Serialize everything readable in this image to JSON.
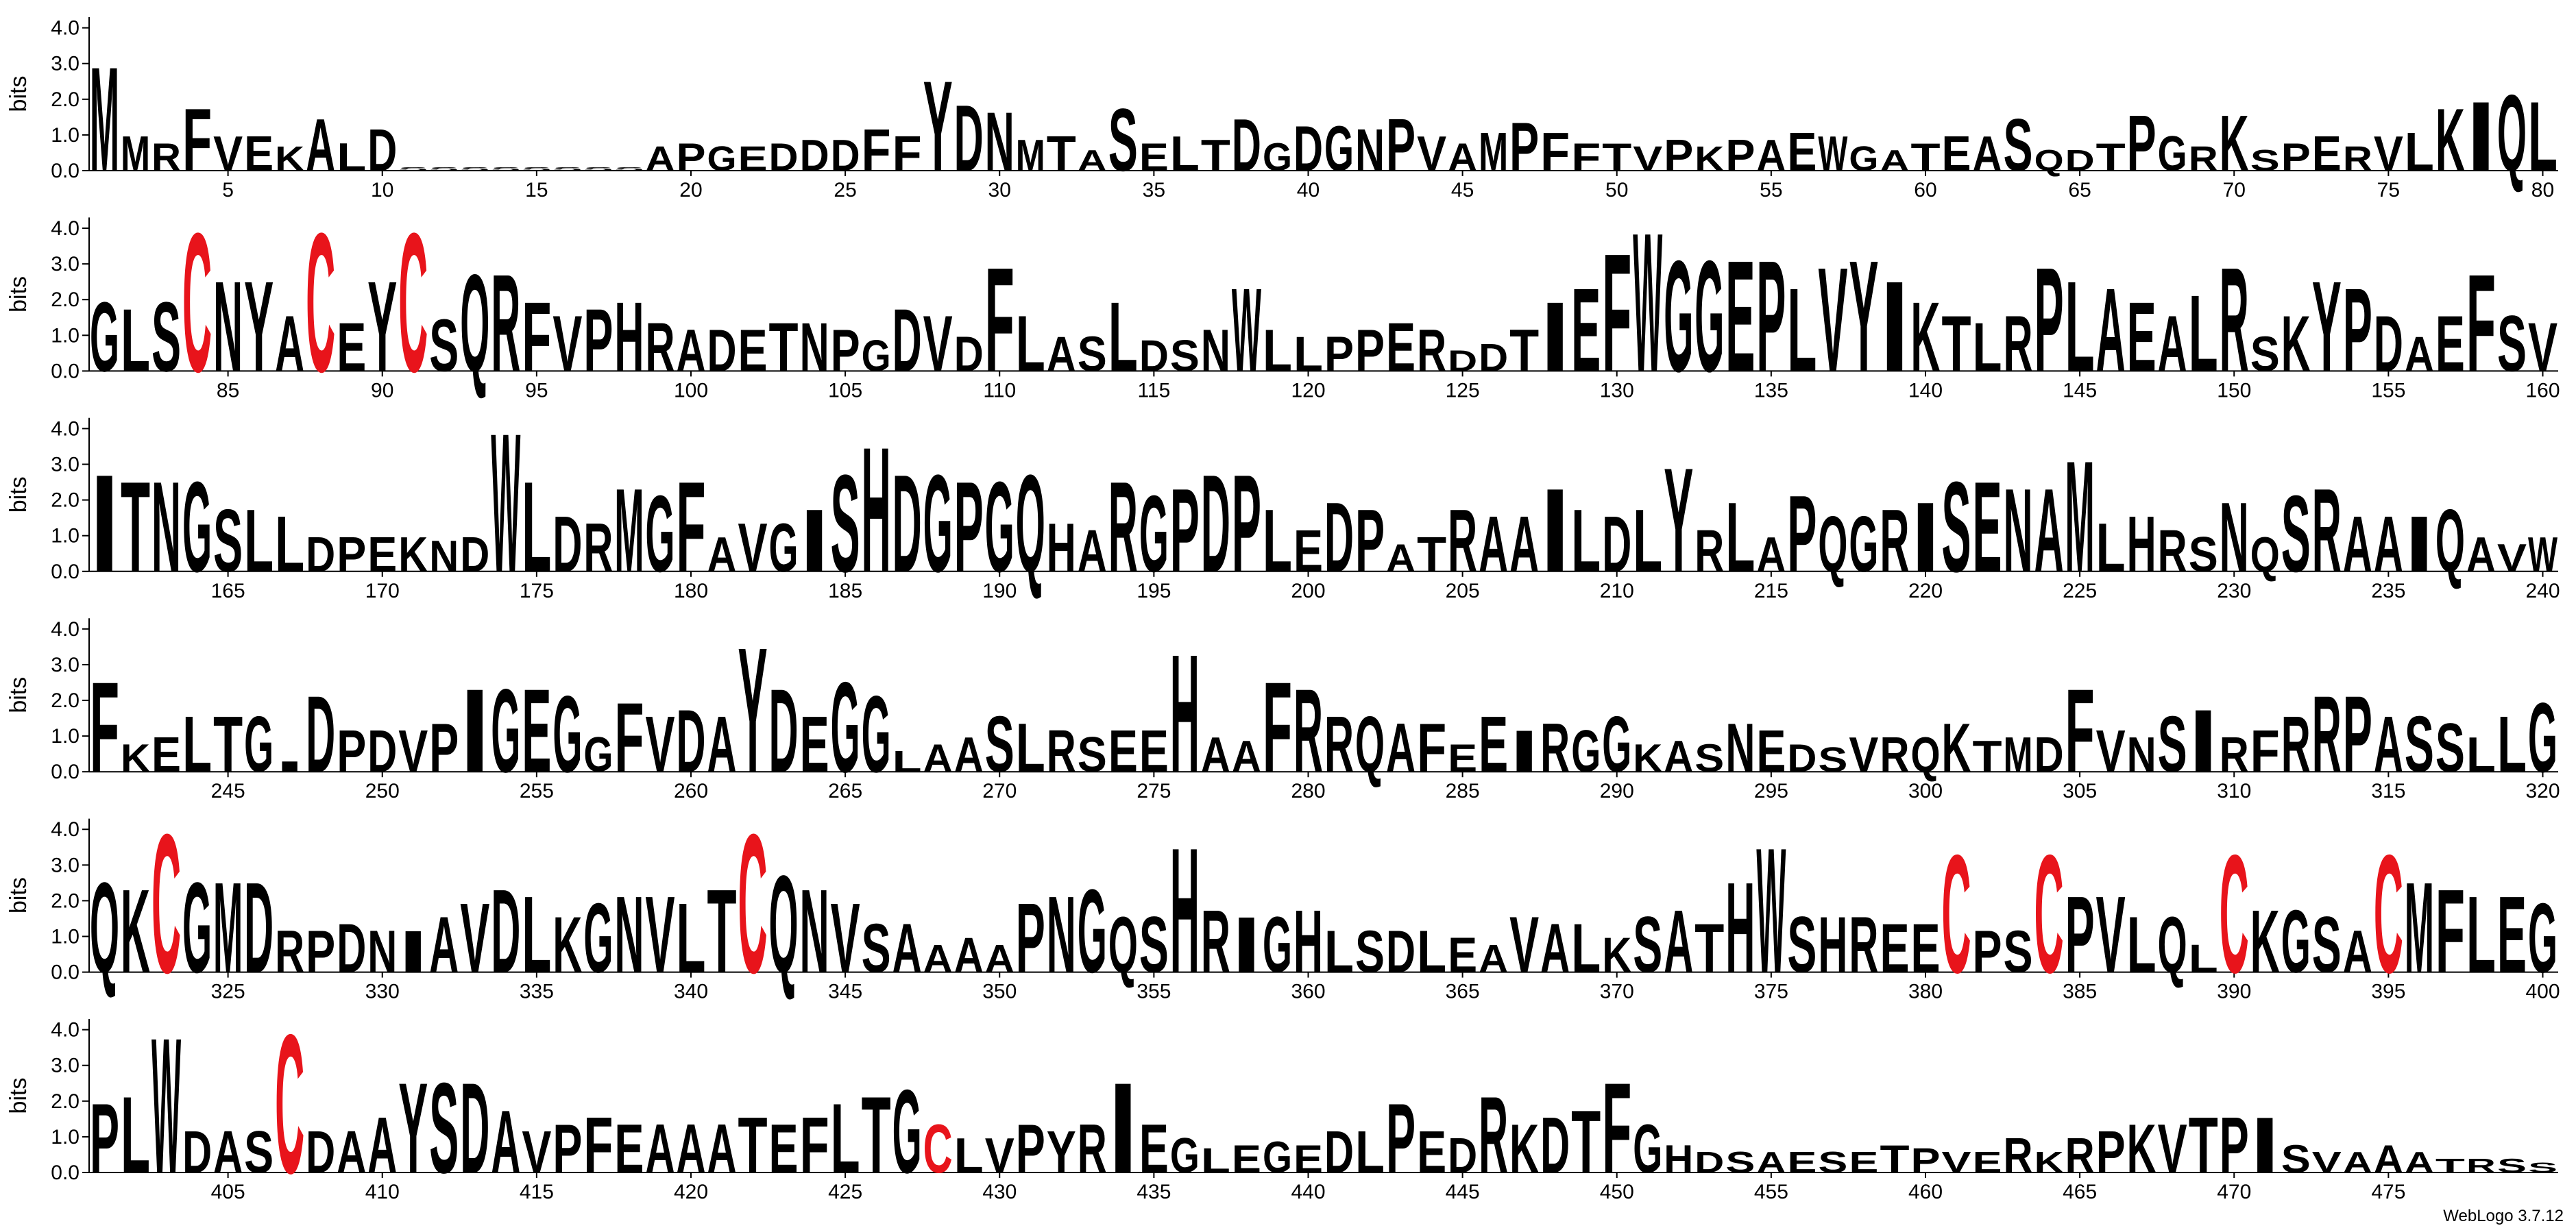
{
  "chart_data": [
    {
      "type": "logo",
      "ylabel": "bits",
      "xlim": [
        0.5,
        80.5
      ],
      "ylim": [
        0,
        4.3
      ],
      "yticks": [
        {
          "value": 0,
          "label": "0.0"
        },
        {
          "value": 1,
          "label": "1.0"
        },
        {
          "value": 2,
          "label": "2.0"
        },
        {
          "value": 3,
          "label": "3.0"
        },
        {
          "value": 4,
          "label": "4.0"
        }
      ],
      "xticks": [
        5,
        10,
        15,
        20,
        25,
        30,
        35,
        40,
        45,
        50,
        55,
        60,
        65,
        70,
        75,
        80
      ],
      "letter_colors": {
        "C": "#e8141b"
      },
      "default_color": "#000000",
      "letters": "MMRFVEKALDSSSSSSSSAPGEDDDFFYDNMTASELTDGDGNPVAMPFFTVPKPAEWGATEASQDTPGRKSPERVLKIQL",
      "heights": [
        3.0,
        1.0,
        0.8,
        1.8,
        1.0,
        1.0,
        0.7,
        1.5,
        0.8,
        1.2,
        0.1,
        0.1,
        0.1,
        0.1,
        0.1,
        0.1,
        0.1,
        0.1,
        0.7,
        0.8,
        0.7,
        0.7,
        0.8,
        0.9,
        0.9,
        1.2,
        1.0,
        2.6,
        1.9,
        1.7,
        0.9,
        1.0,
        0.6,
        1.8,
        0.8,
        1.0,
        0.9,
        1.5,
        0.8,
        1.3,
        1.3,
        1.2,
        1.5,
        1.0,
        0.8,
        1.1,
        1.4,
        1.1,
        0.8,
        0.8,
        0.7,
        0.9,
        0.7,
        0.9,
        0.9,
        1.1,
        1.0,
        0.7,
        0.6,
        0.8,
        1.0,
        1.0,
        1.5,
        0.6,
        0.6,
        0.8,
        1.6,
        1.0,
        0.7,
        1.6,
        0.6,
        0.8,
        1.0,
        0.7,
        1.0,
        1.1,
        1.8,
        2.0,
        2.2,
        2.0
      ]
    },
    {
      "type": "logo",
      "ylabel": "bits",
      "xlim": [
        80.5,
        160.5
      ],
      "ylim": [
        0,
        4.3
      ],
      "yticks": [
        {
          "value": 0,
          "label": "0.0"
        },
        {
          "value": 1,
          "label": "1.0"
        },
        {
          "value": 2,
          "label": "2.0"
        },
        {
          "value": 3,
          "label": "3.0"
        },
        {
          "value": 4,
          "label": "4.0"
        }
      ],
      "xticks": [
        85,
        90,
        95,
        100,
        105,
        110,
        115,
        120,
        125,
        130,
        135,
        140,
        145,
        150,
        155,
        160
      ],
      "letter_colors": {
        "C": "#e8141b"
      },
      "default_color": "#000000",
      "letters": "GLSCNYACEYCSQRFVPHRADETNPGDVDFLASLDSNWLLPPERDDTIEFWGGEPLVYIKTLRPLAEALRSKYPDAEFSV",
      "heights": [
        2.0,
        1.8,
        2.0,
        4.0,
        2.6,
        2.6,
        1.6,
        4.0,
        1.4,
        2.6,
        4.0,
        1.5,
        2.8,
        2.8,
        2.0,
        1.6,
        1.8,
        2.0,
        1.4,
        1.2,
        1.2,
        1.2,
        1.4,
        1.4,
        1.2,
        0.9,
        1.8,
        1.6,
        1.0,
        3.0,
        1.6,
        1.0,
        1.0,
        2.0,
        0.9,
        0.9,
        1.2,
        2.4,
        1.2,
        1.0,
        1.0,
        1.2,
        1.4,
        1.2,
        0.6,
        0.8,
        1.2,
        2.0,
        2.4,
        3.4,
        4.0,
        3.2,
        3.2,
        3.2,
        3.2,
        2.4,
        3.0,
        3.2,
        2.6,
        2.0,
        1.6,
        1.4,
        1.6,
        3.0,
        2.6,
        2.4,
        2.0,
        1.6,
        2.2,
        3.0,
        1.0,
        1.6,
        2.6,
        2.4,
        1.6,
        1.0,
        1.6,
        2.8,
        1.6,
        1.4
      ]
    },
    {
      "type": "logo",
      "ylabel": "bits",
      "xlim": [
        160.5,
        240.5
      ],
      "ylim": [
        0,
        4.3
      ],
      "yticks": [
        {
          "value": 0,
          "label": "0.0"
        },
        {
          "value": 1,
          "label": "1.0"
        },
        {
          "value": 2,
          "label": "2.0"
        },
        {
          "value": 3,
          "label": "3.0"
        },
        {
          "value": 4,
          "label": "4.0"
        }
      ],
      "xticks": [
        165,
        170,
        175,
        180,
        185,
        190,
        195,
        200,
        205,
        210,
        215,
        220,
        225,
        230,
        235,
        240
      ],
      "letter_colors": {
        "C": "#e8141b"
      },
      "default_color": "#000000",
      "letters": "ITNGSLLDPEKNDWLDRMGFAVGISHDGPGQHARGPDPLEDPATRAAILDLYRLAPQGRISENAMLHRSNQSRAAIQAVW",
      "heights": [
        2.8,
        2.6,
        2.6,
        2.6,
        1.8,
        1.8,
        1.6,
        1.0,
        1.0,
        1.0,
        1.0,
        0.9,
        1.0,
        4.0,
        2.6,
        1.6,
        1.4,
        2.4,
        2.2,
        2.6,
        1.0,
        1.4,
        1.4,
        1.8,
        2.8,
        3.6,
        2.8,
        2.8,
        2.6,
        2.6,
        2.8,
        1.4,
        1.2,
        2.6,
        2.2,
        2.4,
        2.8,
        2.8,
        1.8,
        1.2,
        2.0,
        1.8,
        0.8,
        1.0,
        1.8,
        1.6,
        1.6,
        2.4,
        1.8,
        1.6,
        1.8,
        3.0,
        1.2,
        2.0,
        1.0,
        2.2,
        1.6,
        1.6,
        1.8,
        2.0,
        2.6,
        2.6,
        2.4,
        2.4,
        3.2,
        1.4,
        1.6,
        1.2,
        1.0,
        2.0,
        1.0,
        2.2,
        2.4,
        1.6,
        1.6,
        1.6,
        1.8,
        1.0,
        0.8,
        1.0
      ]
    },
    {
      "type": "logo",
      "ylabel": "bits",
      "xlim": [
        240.5,
        320.5
      ],
      "ylim": [
        0,
        4.3
      ],
      "yticks": [
        {
          "value": 0,
          "label": "0.0"
        },
        {
          "value": 1,
          "label": "1.0"
        },
        {
          "value": 2,
          "label": "2.0"
        },
        {
          "value": 3,
          "label": "3.0"
        },
        {
          "value": 4,
          "label": "4.0"
        }
      ],
      "xticks": [
        245,
        250,
        255,
        260,
        265,
        270,
        275,
        280,
        285,
        290,
        295,
        300,
        305,
        310,
        315,
        320
      ],
      "letter_colors": {
        "C": "#e8141b"
      },
      "default_color": "#000000",
      "letters": "FKELTGIDPDVPIGEGGFVDAYDEGGLAASLRSEEHAAFRRQAFEEIRGGKASNEDSVRQKTMDFVNSIRFRRPASSLLG",
      "heights": [
        2.6,
        0.8,
        1.0,
        1.6,
        1.6,
        1.6,
        0.3,
        2.2,
        1.2,
        1.2,
        1.2,
        1.4,
        2.4,
        2.4,
        2.4,
        2.2,
        1.0,
        2.0,
        1.6,
        1.8,
        1.6,
        3.6,
        2.4,
        1.6,
        2.6,
        2.2,
        0.6,
        0.8,
        1.0,
        1.6,
        1.4,
        1.2,
        1.0,
        1.2,
        1.2,
        3.4,
        1.0,
        0.9,
        2.6,
        2.4,
        1.6,
        1.6,
        1.4,
        1.4,
        0.8,
        1.6,
        1.2,
        1.4,
        1.2,
        1.6,
        0.8,
        0.9,
        0.8,
        1.4,
        1.2,
        0.8,
        0.7,
        1.0,
        1.0,
        1.0,
        1.4,
        0.9,
        1.0,
        1.0,
        2.4,
        1.2,
        1.0,
        1.6,
        1.8,
        1.0,
        1.2,
        1.6,
        2.2,
        2.2,
        1.6,
        1.6,
        1.4,
        1.0,
        1.6,
        2.0
      ]
    },
    {
      "type": "logo",
      "ylabel": "bits",
      "xlim": [
        320.5,
        400.5
      ],
      "ylim": [
        0,
        4.3
      ],
      "yticks": [
        {
          "value": 0,
          "label": "0.0"
        },
        {
          "value": 1,
          "label": "1.0"
        },
        {
          "value": 2,
          "label": "2.0"
        },
        {
          "value": 3,
          "label": "3.0"
        },
        {
          "value": 4,
          "label": "4.0"
        }
      ],
      "xticks": [
        325,
        330,
        335,
        340,
        345,
        350,
        355,
        360,
        365,
        370,
        375,
        380,
        385,
        390,
        395,
        400
      ],
      "letter_colors": {
        "C": "#e8141b"
      },
      "default_color": "#000000",
      "letters": "QKCGMDRPDNIAVDLKGNVLTCQNVSAAAAPNGQSHRIGHLSDLEAVALKSATHWSHREECPSCPVLQLCKGSACMFLEG",
      "heights": [
        2.6,
        2.4,
        4.0,
        2.6,
        2.6,
        2.6,
        1.2,
        1.2,
        1.4,
        1.2,
        1.2,
        1.6,
        2.0,
        2.4,
        2.2,
        1.6,
        2.0,
        2.2,
        2.2,
        2.0,
        2.4,
        4.0,
        2.8,
        2.4,
        2.0,
        1.4,
        1.4,
        0.8,
        1.0,
        0.8,
        2.0,
        2.2,
        2.4,
        1.6,
        1.6,
        3.6,
        1.8,
        1.6,
        1.6,
        1.8,
        1.2,
        1.2,
        1.2,
        1.2,
        1.0,
        0.8,
        1.6,
        1.4,
        1.4,
        1.0,
        1.6,
        1.8,
        1.4,
        2.6,
        3.6,
        1.6,
        1.6,
        1.6,
        1.4,
        1.4,
        3.4,
        1.2,
        1.2,
        3.4,
        2.2,
        2.2,
        1.6,
        1.6,
        0.8,
        3.4,
        1.8,
        1.8,
        1.6,
        1.2,
        3.4,
        2.6,
        2.4,
        2.2,
        2.2,
        2.0
      ]
    },
    {
      "type": "logo",
      "ylabel": "bits",
      "xlim": [
        400.5,
        480.5
      ],
      "ylim": [
        0,
        4.3
      ],
      "yticks": [
        {
          "value": 0,
          "label": "0.0"
        },
        {
          "value": 1,
          "label": "1.0"
        },
        {
          "value": 2,
          "label": "2.0"
        },
        {
          "value": 3,
          "label": "3.0"
        },
        {
          "value": 4,
          "label": "4.0"
        }
      ],
      "xticks": [
        405,
        410,
        415,
        420,
        425,
        430,
        435,
        440,
        445,
        450,
        455,
        460,
        465,
        470,
        475
      ],
      "letter_colors": {
        "C": "#e8141b"
      },
      "default_color": "#000000",
      "letters": "PLWDASCDAAYSDAVPFEAAATEFLTGCLVPYRIEGLEGEDLPEDRKDTFGHDSAESETPVERKRPKVTPISVAAATRSS",
      "heights": [
        2.0,
        2.2,
        3.9,
        1.2,
        1.2,
        1.2,
        4.0,
        1.2,
        1.2,
        1.6,
        2.6,
        2.6,
        2.6,
        1.8,
        1.2,
        1.4,
        1.6,
        1.4,
        1.4,
        1.4,
        1.4,
        1.6,
        1.4,
        1.6,
        2.0,
        2.2,
        2.4,
        1.4,
        1.0,
        1.0,
        1.4,
        1.2,
        1.4,
        2.6,
        1.4,
        1.0,
        0.7,
        0.8,
        0.9,
        0.8,
        1.2,
        1.2,
        2.0,
        1.2,
        1.0,
        2.2,
        1.4,
        1.6,
        1.8,
        2.6,
        1.4,
        0.8,
        0.6,
        0.6,
        0.6,
        0.6,
        0.6,
        0.6,
        0.8,
        0.7,
        0.6,
        0.6,
        1.0,
        0.6,
        1.0,
        1.2,
        1.4,
        1.4,
        1.6,
        1.6,
        1.6,
        0.8,
        0.6,
        0.6,
        0.8,
        0.6,
        0.4,
        0.4,
        0.4,
        0.3
      ]
    }
  ],
  "footer": "WebLogo 3.7.12"
}
